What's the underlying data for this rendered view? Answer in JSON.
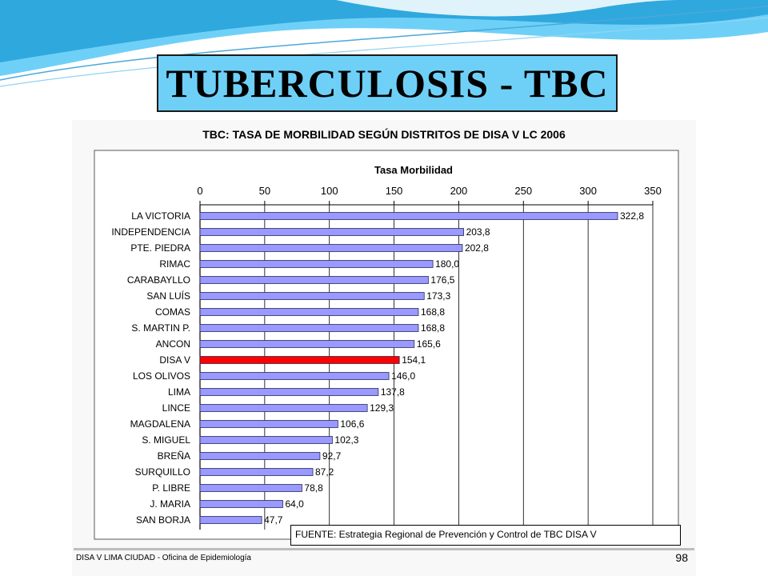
{
  "slide": {
    "title": "TUBERCULOSIS - TBC",
    "footer_left": "DISA V LIMA CIUDAD - Oficina de Epidemiología",
    "page_number": "98",
    "accent_color": "#6fd0f7"
  },
  "chart_data": {
    "type": "bar",
    "orientation": "horizontal",
    "title": "TBC: TASA DE MORBILIDAD SEGÚN DISTRITOS DE DISA V LC  2006",
    "axis_title": "Tasa Morbilidad",
    "xlim": [
      0,
      350
    ],
    "ticks": [
      "0",
      "50",
      "100",
      "150",
      "200",
      "250",
      "300",
      "350"
    ],
    "tick_values": [
      0,
      50,
      100,
      150,
      200,
      250,
      300,
      350
    ],
    "grid": true,
    "bar_color": "#9999ff",
    "highlight_color": "#ff0000",
    "highlight_category": "DISA V",
    "source": "FUENTE: Estrategia Regional de Prevención y Control de TBC DISA V",
    "categories": [
      "LA VICTORIA",
      "INDEPENDENCIA",
      "PTE. PIEDRA",
      "RIMAC",
      "CARABAYLLO",
      "SAN LUÍS",
      "COMAS",
      "S. MARTIN P.",
      "ANCON",
      "DISA V",
      "LOS OLIVOS",
      "LIMA",
      "LINCE",
      "MAGDALENA",
      "S. MIGUEL",
      "BREÑA",
      "SURQUILLO",
      "P. LIBRE",
      "J. MARIA",
      "SAN BORJA"
    ],
    "values": [
      322.8,
      203.8,
      202.8,
      180.0,
      176.5,
      173.3,
      168.8,
      168.8,
      165.6,
      154.1,
      146.0,
      137.8,
      129.3,
      106.6,
      102.3,
      92.7,
      87.2,
      78.8,
      64.0,
      47.7
    ],
    "value_labels": [
      "322,8",
      "203,8",
      "202,8",
      "180,0",
      "176,5",
      "173,3",
      "168,8",
      "168,8",
      "165,6",
      "154,1",
      "146,0",
      "137,8",
      "129,3",
      "106,6",
      "102,3",
      "92,7",
      "87,2",
      "78,8",
      "64,0",
      "47,7"
    ]
  }
}
